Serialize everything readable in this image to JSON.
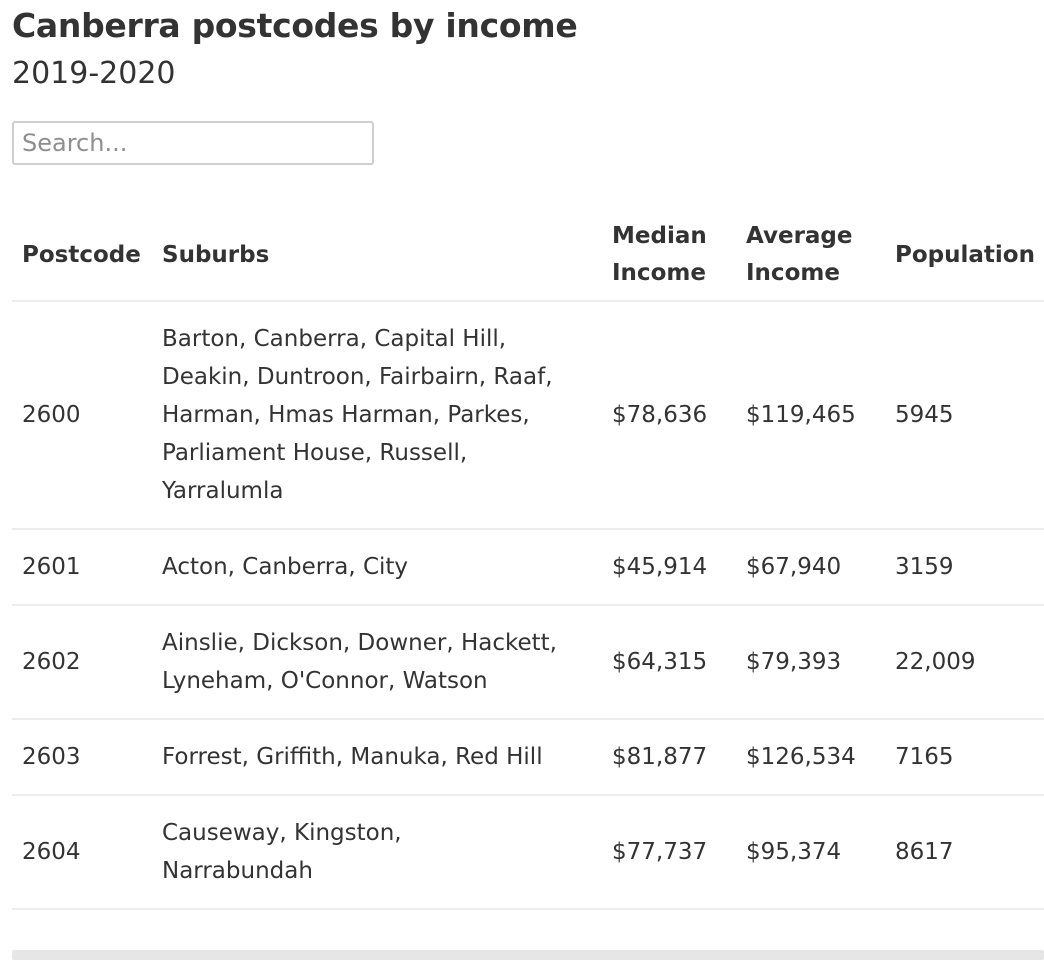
{
  "header": {
    "title": "Canberra postcodes by income",
    "subtitle": "2019-2020"
  },
  "search": {
    "placeholder": "Search..."
  },
  "table": {
    "columns": {
      "postcode": "Postcode",
      "suburbs": "Suburbs",
      "median_line1": "Median",
      "median_line2": "Income",
      "average_line1": "Average",
      "average_line2": "Income",
      "population": "Population"
    },
    "rows": [
      {
        "postcode": "2600",
        "suburbs_lines": [
          "Barton, Canberra, Capital Hill,",
          "Deakin, Duntroon, Fairbairn, Raaf,",
          "Harman, Hmas Harman, Parkes,",
          "Parliament House, Russell,",
          "Yarralumla"
        ],
        "median_income": "$78,636",
        "average_income": "$119,465",
        "population": "5945"
      },
      {
        "postcode": "2601",
        "suburbs_lines": [
          "Acton, Canberra, City"
        ],
        "median_income": "$45,914",
        "average_income": "$67,940",
        "population": "3159"
      },
      {
        "postcode": "2602",
        "suburbs_lines": [
          "Ainslie, Dickson, Downer, Hackett,",
          "Lyneham, O'Connor, Watson"
        ],
        "median_income": "$64,315",
        "average_income": "$79,393",
        "population": "22,009"
      },
      {
        "postcode": "2603",
        "suburbs_lines": [
          "Forrest, Griffith, Manuka, Red Hill"
        ],
        "median_income": "$81,877",
        "average_income": "$126,534",
        "population": "7165"
      },
      {
        "postcode": "2604",
        "suburbs_lines": [
          "Causeway, Kingston,",
          "Narrabundah"
        ],
        "median_income": "$77,737",
        "average_income": "$95,374",
        "population": "8617"
      }
    ]
  }
}
